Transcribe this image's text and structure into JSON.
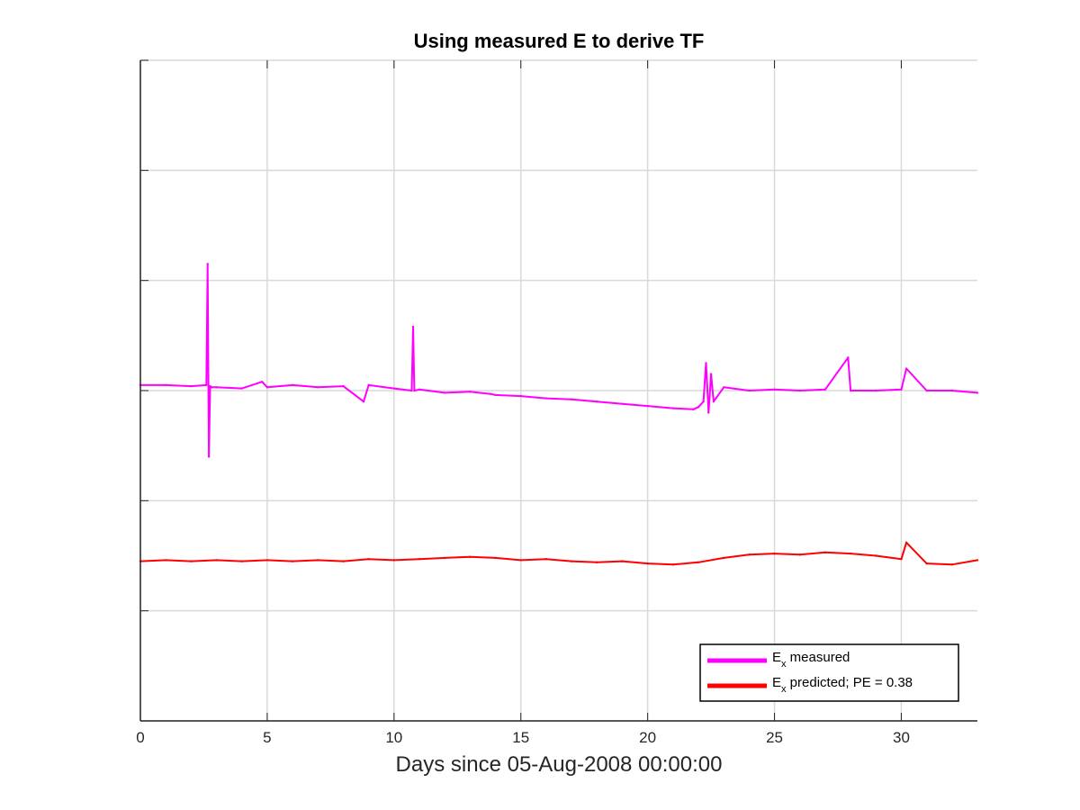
{
  "chart_data": {
    "type": "line",
    "title": "Using measured E to derive TF",
    "xlabel": "Days since 05-Aug-2008 00:00:00",
    "ylabel": "",
    "xlim": [
      0,
      33
    ],
    "xticks": [
      0,
      5,
      10,
      15,
      20,
      25,
      30
    ],
    "ylim": [
      0,
      6
    ],
    "y_tick_labels_shown": false,
    "grid": true,
    "legend_position": "bottom-right",
    "series": [
      {
        "name": "measured",
        "legend_main": "E",
        "legend_sub": "x",
        "legend_rest": " measured",
        "color": "#ff00ff",
        "x": [
          0,
          1,
          2,
          2.6,
          2.65,
          2.7,
          2.75,
          2.8,
          3,
          4,
          4.8,
          5,
          6,
          7,
          8,
          8.8,
          9,
          10,
          10.7,
          10.75,
          10.8,
          11,
          12,
          13,
          13.8,
          14,
          15,
          16,
          17,
          18,
          19,
          20,
          21,
          21.8,
          22,
          22.2,
          22.3,
          22.4,
          22.5,
          22.6,
          23,
          24,
          25,
          26,
          27,
          27.9,
          28,
          29,
          30,
          30.2,
          31,
          32,
          33
        ],
        "y": [
          3.05,
          3.05,
          3.04,
          3.05,
          4.15,
          2.4,
          3.04,
          3.03,
          3.03,
          3.02,
          3.08,
          3.03,
          3.05,
          3.03,
          3.04,
          2.9,
          3.05,
          3.02,
          3.0,
          3.58,
          3.0,
          3.01,
          2.98,
          2.99,
          2.97,
          2.96,
          2.95,
          2.93,
          2.92,
          2.9,
          2.88,
          2.86,
          2.84,
          2.83,
          2.85,
          2.9,
          3.25,
          2.8,
          3.15,
          2.9,
          3.03,
          3.0,
          3.01,
          3.0,
          3.01,
          3.3,
          3.0,
          3.0,
          3.01,
          3.2,
          3.0,
          3.0,
          2.98
        ]
      },
      {
        "name": "predicted",
        "legend_main": "E",
        "legend_sub": "x",
        "legend_rest": " predicted; PE = 0.38",
        "color": "#ff0000",
        "x": [
          0,
          1,
          2,
          3,
          4,
          5,
          6,
          7,
          8,
          9,
          10,
          11,
          12,
          13,
          14,
          15,
          16,
          17,
          18,
          19,
          20,
          21,
          22,
          23,
          24,
          25,
          26,
          27,
          28,
          29,
          30,
          30.2,
          31,
          32,
          33
        ],
        "y": [
          1.45,
          1.46,
          1.45,
          1.46,
          1.45,
          1.46,
          1.45,
          1.46,
          1.45,
          1.47,
          1.46,
          1.47,
          1.48,
          1.49,
          1.48,
          1.46,
          1.47,
          1.45,
          1.44,
          1.45,
          1.43,
          1.42,
          1.44,
          1.48,
          1.51,
          1.52,
          1.51,
          1.53,
          1.52,
          1.5,
          1.47,
          1.62,
          1.43,
          1.42,
          1.46
        ]
      }
    ]
  }
}
